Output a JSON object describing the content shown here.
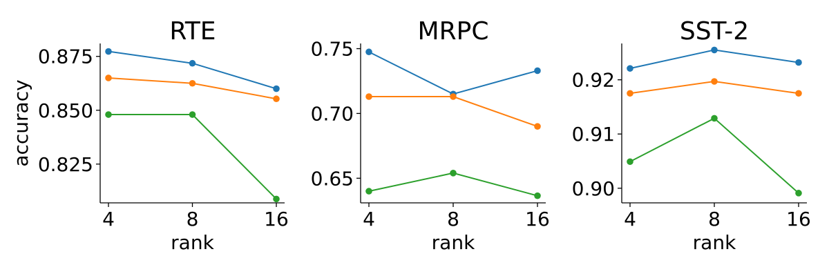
{
  "chart_data": [
    {
      "type": "line",
      "title": "RTE",
      "xlabel": "rank",
      "ylabel": "accuracy",
      "x": [
        4,
        8,
        16
      ],
      "x_ticks": [
        "4",
        "8",
        "16"
      ],
      "ylim": [
        0.807,
        0.881
      ],
      "y_ticks": [
        0.825,
        0.85,
        0.875
      ],
      "y_tick_labels": [
        "0.825",
        "0.850",
        "0.875"
      ],
      "series": [
        {
          "color": "#1f77b4",
          "values": [
            0.8773,
            0.8718,
            0.86
          ]
        },
        {
          "color": "#ff7f0e",
          "values": [
            0.865,
            0.8625,
            0.8553
          ]
        },
        {
          "color": "#2ca02c",
          "values": [
            0.848,
            0.848,
            0.8088
          ]
        }
      ]
    },
    {
      "type": "line",
      "title": "MRPC",
      "xlabel": "rank",
      "ylabel": "",
      "x": [
        4,
        8,
        16
      ],
      "x_ticks": [
        "4",
        "8",
        "16"
      ],
      "ylim": [
        0.631,
        0.754
      ],
      "y_ticks": [
        0.65,
        0.7,
        0.75
      ],
      "y_tick_labels": [
        "0.65",
        "0.70",
        "0.75"
      ],
      "series": [
        {
          "color": "#1f77b4",
          "values": [
            0.7475,
            0.715,
            0.733
          ]
        },
        {
          "color": "#ff7f0e",
          "values": [
            0.713,
            0.713,
            0.69
          ]
        },
        {
          "color": "#2ca02c",
          "values": [
            0.64,
            0.654,
            0.6365
          ]
        }
      ]
    },
    {
      "type": "line",
      "title": "SST-2",
      "xlabel": "rank",
      "ylabel": "",
      "x": [
        4,
        8,
        16
      ],
      "x_ticks": [
        "4",
        "8",
        "16"
      ],
      "ylim": [
        0.8973,
        0.9267
      ],
      "y_ticks": [
        0.9,
        0.91,
        0.92
      ],
      "y_tick_labels": [
        "0.90",
        "0.91",
        "0.92"
      ],
      "series": [
        {
          "color": "#1f77b4",
          "values": [
            0.9221,
            0.9255,
            0.9232
          ]
        },
        {
          "color": "#ff7f0e",
          "values": [
            0.9175,
            0.9197,
            0.9175
          ]
        },
        {
          "color": "#2ca02c",
          "values": [
            0.9049,
            0.9129,
            0.8991
          ]
        }
      ]
    }
  ]
}
